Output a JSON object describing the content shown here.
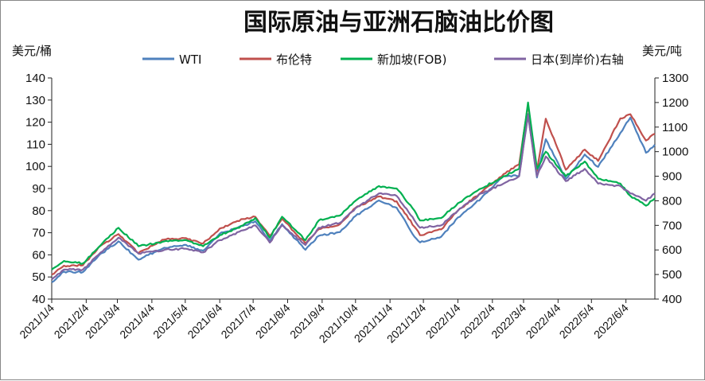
{
  "chart_data": {
    "type": "line",
    "title": "国际原油与亚洲石脑油比价图",
    "ylabel_left": "美元/桶",
    "ylabel_right": "美元/吨",
    "ylim_left": [
      40,
      140
    ],
    "yticks_left": [
      "140",
      "130",
      "120",
      "110",
      "100",
      "90",
      "80",
      "70",
      "60",
      "50",
      "40"
    ],
    "ylim_right": [
      400,
      1300
    ],
    "yticks_right": [
      "1300",
      "1200",
      "1100",
      "1000",
      "900",
      "800",
      "700",
      "600",
      "500",
      "400"
    ],
    "x_ticks": [
      "2021/1/4",
      "2021/2/4",
      "2021/3/4",
      "2021/4/4",
      "2021/5/4",
      "2021/6/4",
      "2021/7/4",
      "2021/8/4",
      "2021/9/4",
      "2021/10/4",
      "2021/11/4",
      "2021/12/4",
      "2022/1/4",
      "2022/2/4",
      "2022/3/4",
      "2022/4/4",
      "2022/5/4",
      "2022/6/4"
    ],
    "x_range": [
      "2021/1/4",
      "2022/6/30"
    ],
    "legend_position": "top",
    "grid": false,
    "series": [
      {
        "name": "WTI",
        "axis": "left",
        "color": "#4f81bd",
        "points": [
          [
            "2021/1/4",
            47.6
          ],
          [
            "2021/1/15",
            52.4
          ],
          [
            "2021/2/1",
            52.2
          ],
          [
            "2021/2/15",
            59.5
          ],
          [
            "2021/3/5",
            66.1
          ],
          [
            "2021/3/23",
            57.8
          ],
          [
            "2021/4/15",
            63.2
          ],
          [
            "2021/5/3",
            64.5
          ],
          [
            "2021/5/20",
            61.9
          ],
          [
            "2021/6/4",
            69.6
          ],
          [
            "2021/6/25",
            73.1
          ],
          [
            "2021/7/6",
            75.2
          ],
          [
            "2021/7/19",
            66.4
          ],
          [
            "2021/7/30",
            73.9
          ],
          [
            "2021/8/20",
            62.3
          ],
          [
            "2021/9/1",
            68.6
          ],
          [
            "2021/9/20",
            70.3
          ],
          [
            "2021/10/4",
            77.6
          ],
          [
            "2021/10/25",
            84.6
          ],
          [
            "2021/11/10",
            81.3
          ],
          [
            "2021/11/26",
            68.2
          ],
          [
            "2021/12/1",
            65.6
          ],
          [
            "2021/12/20",
            68.2
          ],
          [
            "2022/1/4",
            76.9
          ],
          [
            "2022/1/25",
            85.6
          ],
          [
            "2022/2/14",
            95.5
          ],
          [
            "2022/2/28",
            95.7
          ],
          [
            "2022/3/8",
            123.7
          ],
          [
            "2022/3/16",
            95.0
          ],
          [
            "2022/3/24",
            112.3
          ],
          [
            "2022/4/11",
            94.3
          ],
          [
            "2022/4/28",
            105.4
          ],
          [
            "2022/5/10",
            99.8
          ],
          [
            "2022/5/30",
            115.1
          ],
          [
            "2022/6/8",
            122.1
          ],
          [
            "2022/6/22",
            106.2
          ],
          [
            "2022/6/30",
            109.8
          ]
        ]
      },
      {
        "name": "布伦特",
        "axis": "left",
        "color": "#c0504d",
        "points": [
          [
            "2021/1/4",
            51.1
          ],
          [
            "2021/1/15",
            55.1
          ],
          [
            "2021/2/1",
            55.3
          ],
          [
            "2021/2/15",
            63.3
          ],
          [
            "2021/3/5",
            69.4
          ],
          [
            "2021/3/23",
            60.8
          ],
          [
            "2021/4/15",
            66.9
          ],
          [
            "2021/5/3",
            67.6
          ],
          [
            "2021/5/20",
            65.1
          ],
          [
            "2021/6/4",
            71.9
          ],
          [
            "2021/6/25",
            76.2
          ],
          [
            "2021/7/6",
            77.2
          ],
          [
            "2021/7/19",
            68.6
          ],
          [
            "2021/7/30",
            76.3
          ],
          [
            "2021/8/20",
            65.2
          ],
          [
            "2021/9/1",
            71.6
          ],
          [
            "2021/9/20",
            73.9
          ],
          [
            "2021/10/4",
            81.3
          ],
          [
            "2021/10/25",
            86.4
          ],
          [
            "2021/11/10",
            84.2
          ],
          [
            "2021/11/26",
            72.7
          ],
          [
            "2021/12/1",
            68.9
          ],
          [
            "2021/12/20",
            71.5
          ],
          [
            "2022/1/4",
            80.0
          ],
          [
            "2022/1/25",
            88.2
          ],
          [
            "2022/2/14",
            96.5
          ],
          [
            "2022/2/28",
            100.9
          ],
          [
            "2022/3/8",
            127.9
          ],
          [
            "2022/3/16",
            98.0
          ],
          [
            "2022/3/24",
            121.6
          ],
          [
            "2022/4/11",
            98.5
          ],
          [
            "2022/4/28",
            107.6
          ],
          [
            "2022/5/10",
            102.5
          ],
          [
            "2022/5/30",
            121.7
          ],
          [
            "2022/6/8",
            123.6
          ],
          [
            "2022/6/22",
            111.7
          ],
          [
            "2022/6/30",
            114.8
          ]
        ]
      },
      {
        "name": "新加坡(FOB)",
        "axis": "right",
        "color": "#00b050",
        "points": [
          [
            "2021/1/4",
            520
          ],
          [
            "2021/1/15",
            555
          ],
          [
            "2021/2/1",
            545
          ],
          [
            "2021/2/15",
            610
          ],
          [
            "2021/3/5",
            690
          ],
          [
            "2021/3/23",
            615
          ],
          [
            "2021/4/15",
            635
          ],
          [
            "2021/5/3",
            640
          ],
          [
            "2021/5/20",
            615
          ],
          [
            "2021/6/4",
            660
          ],
          [
            "2021/6/25",
            700
          ],
          [
            "2021/7/6",
            730
          ],
          [
            "2021/7/19",
            650
          ],
          [
            "2021/7/30",
            735
          ],
          [
            "2021/8/20",
            640
          ],
          [
            "2021/9/1",
            720
          ],
          [
            "2021/9/20",
            740
          ],
          [
            "2021/10/4",
            800
          ],
          [
            "2021/10/25",
            860
          ],
          [
            "2021/11/10",
            850
          ],
          [
            "2021/11/26",
            760
          ],
          [
            "2021/12/1",
            720
          ],
          [
            "2021/12/20",
            730
          ],
          [
            "2022/1/4",
            790
          ],
          [
            "2022/1/25",
            850
          ],
          [
            "2022/2/14",
            900
          ],
          [
            "2022/2/28",
            930
          ],
          [
            "2022/3/8",
            1200
          ],
          [
            "2022/3/16",
            930
          ],
          [
            "2022/3/24",
            1000
          ],
          [
            "2022/4/11",
            900
          ],
          [
            "2022/4/28",
            960
          ],
          [
            "2022/5/10",
            890
          ],
          [
            "2022/5/30",
            870
          ],
          [
            "2022/6/8",
            820
          ],
          [
            "2022/6/22",
            780
          ],
          [
            "2022/6/30",
            810
          ]
        ]
      },
      {
        "name": "日本(到岸价)右轴",
        "axis": "right",
        "color": "#8064a2",
        "points": [
          [
            "2021/1/4",
            480
          ],
          [
            "2021/1/15",
            520
          ],
          [
            "2021/2/1",
            520
          ],
          [
            "2021/2/15",
            580
          ],
          [
            "2021/3/5",
            650
          ],
          [
            "2021/3/23",
            585
          ],
          [
            "2021/4/15",
            600
          ],
          [
            "2021/5/3",
            605
          ],
          [
            "2021/5/20",
            590
          ],
          [
            "2021/6/4",
            640
          ],
          [
            "2021/6/25",
            680
          ],
          [
            "2021/7/6",
            700
          ],
          [
            "2021/7/19",
            630
          ],
          [
            "2021/7/30",
            700
          ],
          [
            "2021/8/20",
            620
          ],
          [
            "2021/9/1",
            690
          ],
          [
            "2021/9/20",
            710
          ],
          [
            "2021/10/4",
            770
          ],
          [
            "2021/10/25",
            830
          ],
          [
            "2021/11/10",
            820
          ],
          [
            "2021/11/26",
            720
          ],
          [
            "2021/12/1",
            690
          ],
          [
            "2021/12/20",
            700
          ],
          [
            "2022/1/4",
            760
          ],
          [
            "2022/1/25",
            830
          ],
          [
            "2022/2/14",
            870
          ],
          [
            "2022/2/28",
            900
          ],
          [
            "2022/3/8",
            1150
          ],
          [
            "2022/3/16",
            900
          ],
          [
            "2022/3/24",
            980
          ],
          [
            "2022/4/11",
            880
          ],
          [
            "2022/4/28",
            930
          ],
          [
            "2022/5/10",
            870
          ],
          [
            "2022/5/30",
            860
          ],
          [
            "2022/6/8",
            830
          ],
          [
            "2022/6/22",
            800
          ],
          [
            "2022/6/30",
            830
          ]
        ]
      }
    ]
  }
}
